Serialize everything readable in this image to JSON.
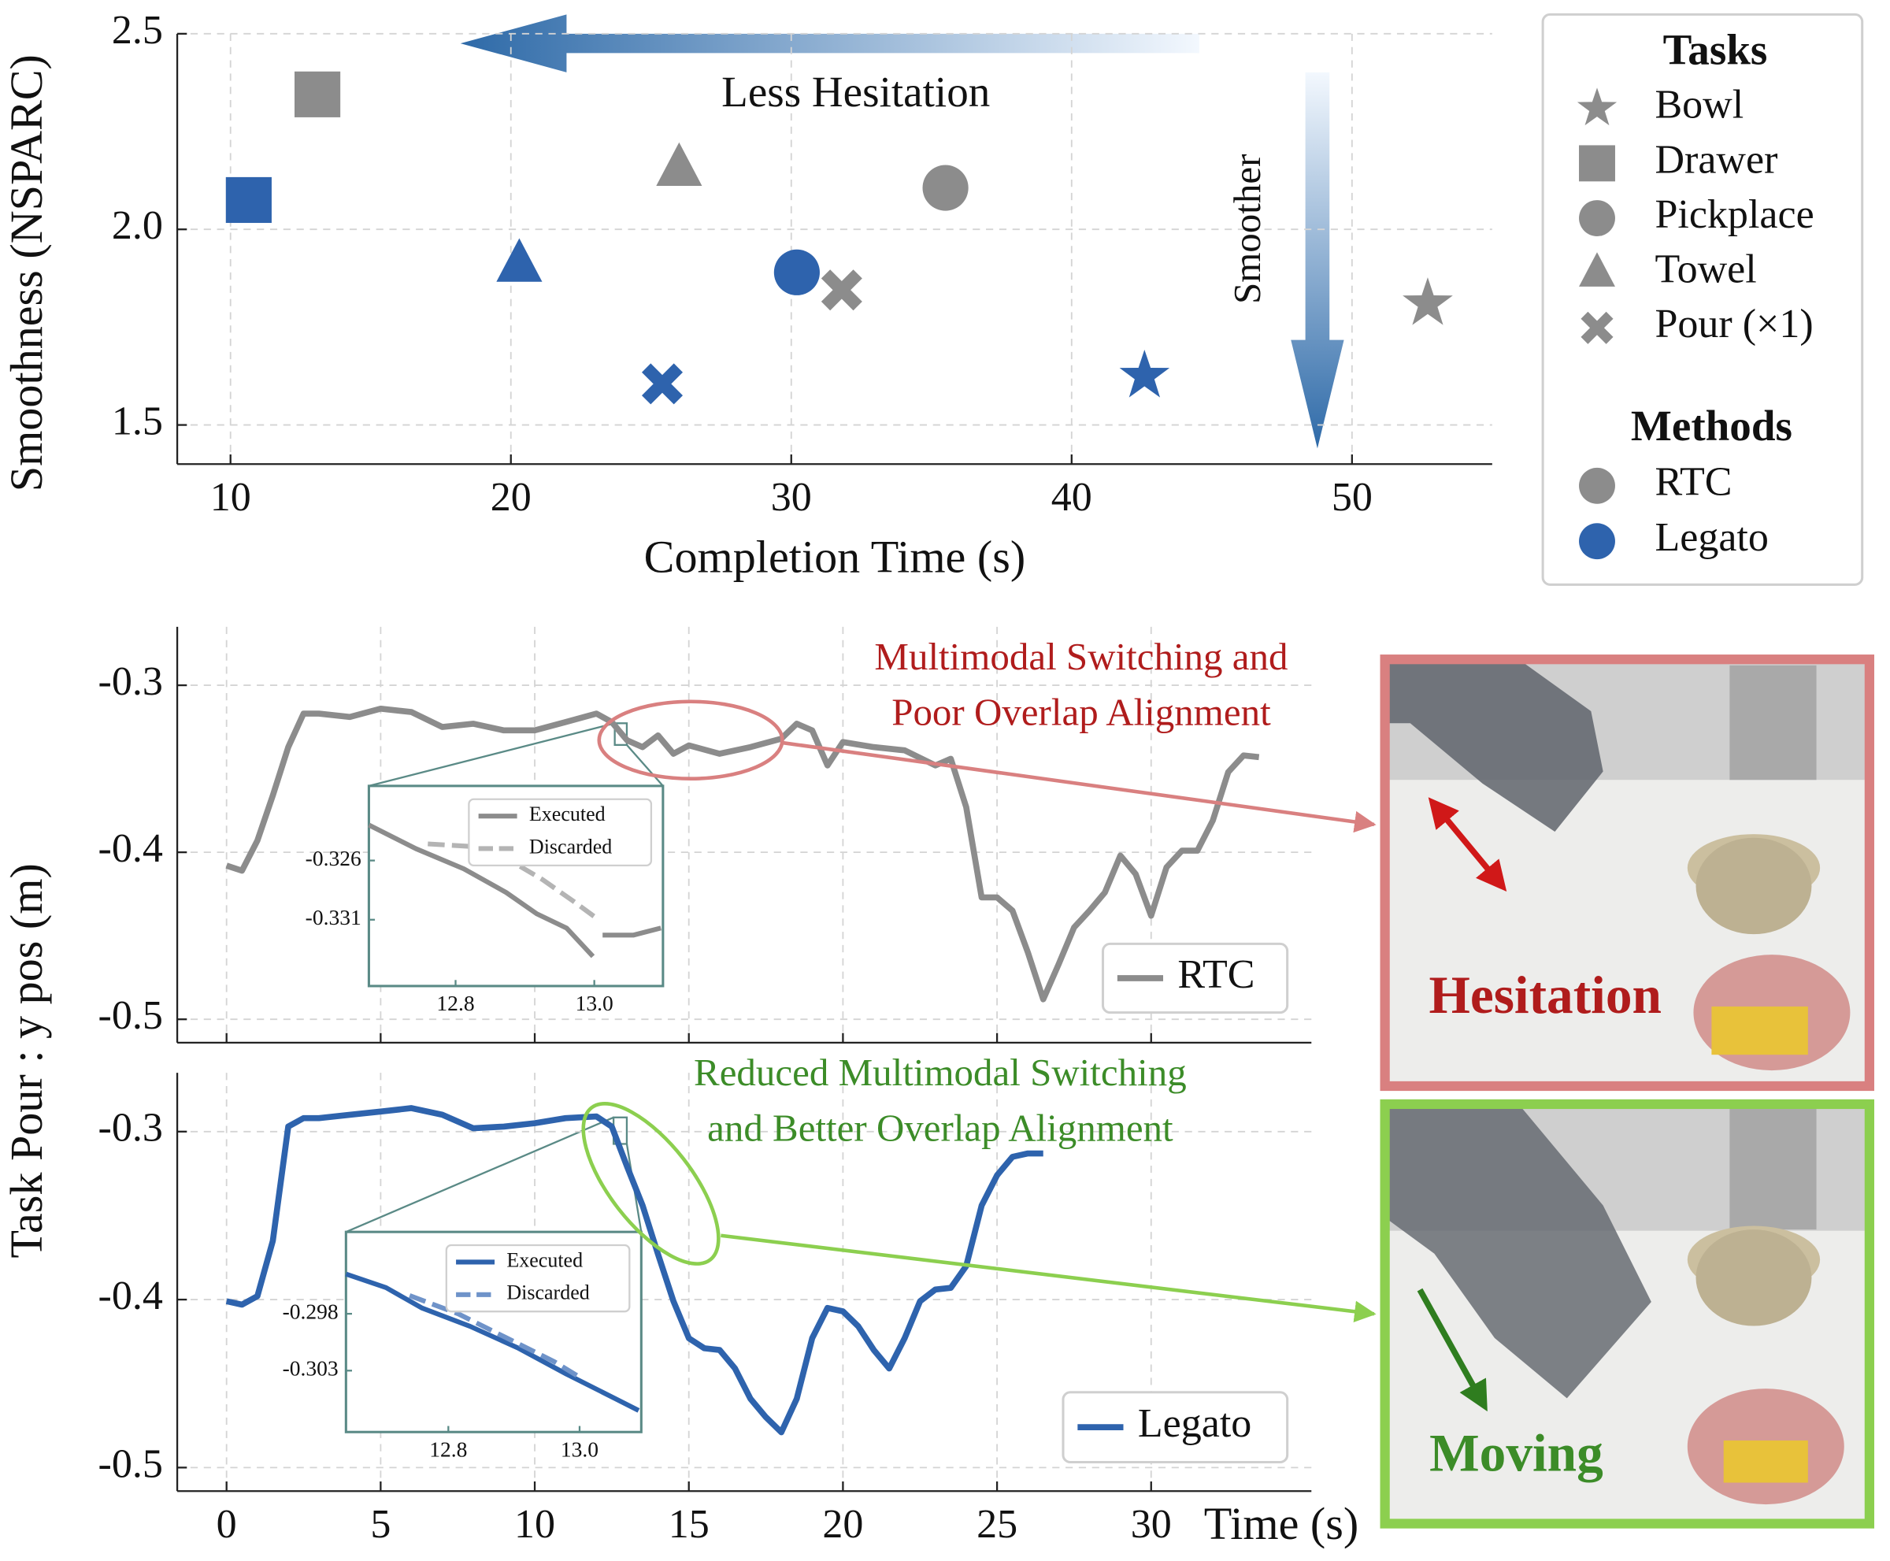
{
  "chart_data": [
    {
      "type": "scatter",
      "xlabel": "Completion Time (s)",
      "ylabel": "Smoothness (NSPARC)",
      "xlim": [
        8.1,
        55
      ],
      "ylim": [
        1.4,
        2.5
      ],
      "xticks": [
        10,
        20,
        30,
        40,
        50
      ],
      "yticks": [
        1.5,
        {
          "value": 2.0,
          "label": "2.0"
        },
        2.5
      ],
      "grid": true,
      "annotations": [
        "Less Hesitation",
        "Smoother"
      ],
      "legend_titles": {
        "tasks": "Tasks",
        "methods": "Methods"
      },
      "categories": [
        "Bowl",
        "Drawer",
        "Pickplace",
        "Towel",
        "Pour (×1)"
      ],
      "markers": [
        "star",
        "square",
        "circle",
        "triangle",
        "cross"
      ],
      "series": [
        {
          "name": "RTC",
          "color": "#8c8c8c",
          "x": [
            52.7,
            13.1,
            35.5,
            26.0,
            31.8
          ],
          "values": [
            1.81,
            2.345,
            2.106,
            2.155,
            1.845
          ]
        },
        {
          "name": "Legato",
          "color": "#2e63ad",
          "x": [
            42.6,
            10.65,
            30.2,
            20.3,
            25.4
          ],
          "values": [
            1.625,
            2.075,
            1.89,
            1.91,
            1.605
          ]
        }
      ]
    },
    {
      "type": "line",
      "ylabel": "Task Pour :  y pos (m)",
      "xlim": [
        -1.6,
        35.2
      ],
      "ylim": [
        -0.514,
        -0.265
      ],
      "xticks": [
        0,
        5,
        10,
        15,
        20,
        25,
        30
      ],
      "xtick_labels": false,
      "yticks": [
        -0.5,
        -0.4,
        -0.3
      ],
      "grid": true,
      "annotation": [
        "Multimodal Switching and",
        "Poor Overlap Alignment"
      ],
      "series": [
        {
          "name": "RTC",
          "color": "#8c8c8c",
          "x": [
            0,
            0.5,
            1,
            1.5,
            2,
            2.5,
            3,
            4,
            5,
            6,
            7,
            8,
            9,
            10,
            11,
            12,
            12.5,
            13,
            13.5,
            14,
            14.5,
            15,
            16,
            17,
            18,
            18.5,
            19,
            19.5,
            20,
            21,
            22,
            23,
            23.5,
            24,
            24.5,
            25,
            25.5,
            26,
            26.5,
            27,
            27.5,
            28,
            28.5,
            29,
            29.5,
            30,
            30.5,
            31,
            31.5,
            32,
            32.5,
            33,
            33.5
          ],
          "values": [
            -0.408,
            -0.411,
            -0.393,
            -0.366,
            -0.337,
            -0.317,
            -0.317,
            -0.319,
            -0.314,
            -0.316,
            -0.325,
            -0.323,
            -0.327,
            -0.327,
            -0.322,
            -0.317,
            -0.322,
            -0.333,
            -0.337,
            -0.33,
            -0.341,
            -0.336,
            -0.341,
            -0.337,
            -0.332,
            -0.323,
            -0.327,
            -0.348,
            -0.334,
            -0.337,
            -0.339,
            -0.348,
            -0.344,
            -0.373,
            -0.427,
            -0.427,
            -0.435,
            -0.46,
            -0.488,
            -0.467,
            -0.445,
            -0.435,
            -0.424,
            -0.402,
            -0.413,
            -0.438,
            -0.409,
            -0.399,
            -0.399,
            -0.381,
            -0.352,
            -0.342,
            -0.343
          ]
        }
      ],
      "inset": {
        "xlim": [
          12.675,
          13.099
        ],
        "ylim": [
          -0.3366,
          -0.3197
        ],
        "xticks": [
          12.8,
          {
            "value": 13.0,
            "label": "13.0"
          }
        ],
        "yticks": [
          -0.331,
          -0.326
        ],
        "series": [
          {
            "name": "Executed",
            "color": "#8c8c8c",
            "dashed": false,
            "x": [
              12.675,
              12.743,
              12.812,
              12.873,
              12.917,
              12.96,
              12.998,
              null,
              13.012,
              13.056,
              13.096
            ],
            "values": [
              -0.323,
              -0.325,
              -0.3267,
              -0.3287,
              -0.3305,
              -0.3317,
              -0.3341,
              null,
              -0.3323,
              -0.3323,
              -0.3317
            ]
          },
          {
            "name": "Discarded",
            "color": "#b4b4b4",
            "dashed": true,
            "x": [
              12.76,
              12.82,
              12.873,
              12.925,
              12.969,
              13.004
            ],
            "values": [
              -0.3246,
              -0.3248,
              -0.3258,
              -0.3276,
              -0.3294,
              -0.3309
            ]
          }
        ]
      }
    },
    {
      "type": "line",
      "xlabel": "Time (s)",
      "xlim": [
        -1.6,
        35.2
      ],
      "ylim": [
        -0.514,
        -0.265
      ],
      "xticks": [
        0,
        5,
        10,
        15,
        20,
        25,
        30
      ],
      "yticks": [
        -0.5,
        -0.4,
        -0.3
      ],
      "grid": true,
      "annotation": [
        "Reduced Multimodal Switching",
        "and Better Overlap Alignment"
      ],
      "series": [
        {
          "name": "Legato",
          "color": "#2e63ad",
          "x": [
            0,
            0.5,
            1,
            1.5,
            2,
            2.5,
            3,
            4,
            5,
            6,
            7,
            8,
            9,
            10,
            11,
            12,
            12.5,
            13,
            13.5,
            14,
            14.5,
            15,
            15.5,
            16,
            16.5,
            17,
            17.5,
            18,
            18.5,
            19,
            19.5,
            20,
            20.5,
            21,
            21.5,
            22,
            22.5,
            23,
            23.5,
            24,
            24.5,
            25,
            25.5,
            26,
            26.5
          ],
          "values": [
            -0.401,
            -0.403,
            -0.398,
            -0.365,
            -0.297,
            -0.292,
            -0.292,
            -0.29,
            -0.288,
            -0.286,
            -0.29,
            -0.298,
            -0.297,
            -0.295,
            -0.292,
            -0.291,
            -0.297,
            -0.321,
            -0.344,
            -0.373,
            -0.401,
            -0.423,
            -0.429,
            -0.43,
            -0.441,
            -0.459,
            -0.47,
            -0.479,
            -0.459,
            -0.423,
            -0.405,
            -0.407,
            -0.416,
            -0.43,
            -0.441,
            -0.423,
            -0.401,
            -0.394,
            -0.393,
            -0.38,
            -0.344,
            -0.326,
            -0.315,
            -0.313,
            -0.313
          ]
        }
      ],
      "inset": {
        "xlim": [
          12.644,
          13.094
        ],
        "ylim": [
          -0.3084,
          -0.2908
        ],
        "xticks": [
          12.8,
          {
            "value": 13.0,
            "label": "13.0"
          }
        ],
        "yticks": [
          -0.303,
          -0.298
        ],
        "series": [
          {
            "name": "Executed",
            "color": "#2e63ad",
            "dashed": false,
            "x": [
              12.644,
              12.705,
              12.76,
              12.833,
              12.906,
              12.98,
              13.035,
              13.09
            ],
            "values": [
              -0.2945,
              -0.2957,
              -0.2975,
              -0.2991,
              -0.301,
              -0.3033,
              -0.3049,
              -0.3065
            ]
          },
          {
            "name": "Discarded",
            "color": "#6f93c9",
            "dashed": true,
            "x": [
              12.741,
              12.815,
              12.888,
              12.961,
              12.998
            ],
            "values": [
              -0.2964,
              -0.298,
              -0.3001,
              -0.3022,
              -0.3035
            ]
          }
        ]
      }
    }
  ],
  "photos": [
    {
      "label": "Hesitation"
    },
    {
      "label": "Moving"
    }
  ]
}
